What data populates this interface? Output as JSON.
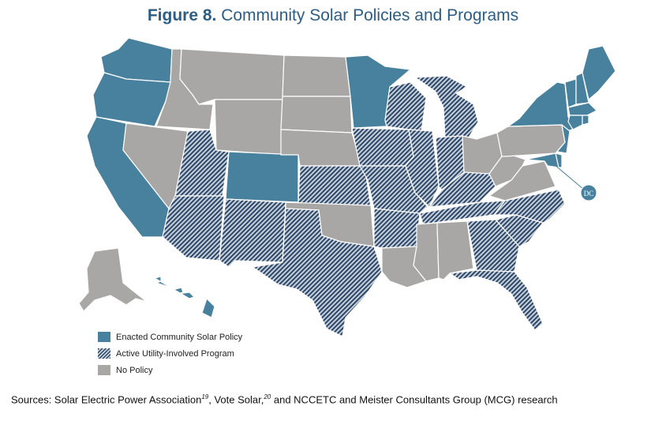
{
  "figure": {
    "number": "Figure 8.",
    "title": " Community Solar Policies and Programs"
  },
  "legend": {
    "items": [
      {
        "label": "Enacted Community Solar Policy",
        "category": "enacted"
      },
      {
        "label": "Active Utility-Involved Program",
        "category": "active"
      },
      {
        "label": "No Policy",
        "category": "none"
      }
    ]
  },
  "dc_label": "DC",
  "colors": {
    "enacted": "#48819d",
    "active_stripe": "#2c4768",
    "active_bg": "#c6cfda",
    "none": "#a9a6a6",
    "title": "#2d5d83"
  },
  "states": {
    "enacted": [
      "WA",
      "OR",
      "CA",
      "CO",
      "MN",
      "NY",
      "VT",
      "NH",
      "ME",
      "MA",
      "CT",
      "RI",
      "NJ",
      "DE",
      "MD",
      "DC",
      "HI"
    ],
    "active": [
      "UT",
      "AZ",
      "NM",
      "KS",
      "IA",
      "MO",
      "WI",
      "IL",
      "MI",
      "IN",
      "KY",
      "TN",
      "AR",
      "NC",
      "SC",
      "GA",
      "FL",
      "TX"
    ],
    "none": [
      "ID",
      "MT",
      "WY",
      "NV",
      "ND",
      "SD",
      "NE",
      "OK",
      "LA",
      "MS",
      "AL",
      "OH",
      "PA",
      "WV",
      "VA",
      "AK"
    ]
  },
  "sources": {
    "text1": "Sources: Solar Electric Power Association",
    "ref1": "19",
    "text2": ", Vote Solar,",
    "ref2": "20",
    "text3": " and NCCETC and Meister Consultants Group (MCG) research"
  }
}
